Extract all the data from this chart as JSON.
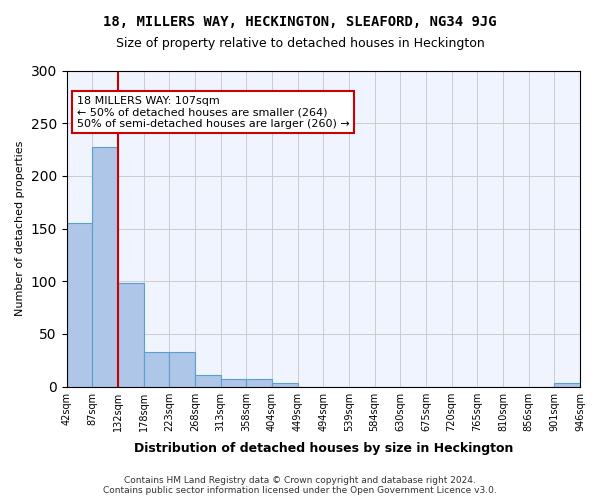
{
  "title": "18, MILLERS WAY, HECKINGTON, SLEAFORD, NG34 9JG",
  "subtitle": "Size of property relative to detached houses in Heckington",
  "xlabel": "Distribution of detached houses by size in Heckington",
  "ylabel": "Number of detached properties",
  "bar_values": [
    155,
    227,
    98,
    33,
    33,
    11,
    7,
    7,
    3,
    0,
    0,
    0,
    0,
    0,
    0,
    0,
    0,
    0,
    0,
    3
  ],
  "bar_labels": [
    "42sqm",
    "87sqm",
    "132sqm",
    "178sqm",
    "223sqm",
    "268sqm",
    "313sqm",
    "358sqm",
    "404sqm",
    "449sqm",
    "494sqm",
    "539sqm",
    "584sqm",
    "630sqm",
    "675sqm",
    "720sqm",
    "765sqm",
    "810sqm",
    "856sqm",
    "901sqm",
    "946sqm"
  ],
  "bar_color": "#aec6e8",
  "bar_edge_color": "#5a9fd4",
  "ylim": [
    0,
    300
  ],
  "yticks": [
    0,
    50,
    100,
    150,
    200,
    250,
    300
  ],
  "vline_x": 2,
  "vline_color": "#cc0000",
  "annotation_text": "18 MILLERS WAY: 107sqm\n← 50% of detached houses are smaller (264)\n50% of semi-detached houses are larger (260) →",
  "annotation_box_color": "#ffffff",
  "annotation_box_edge_color": "#cc0000",
  "footer_text": "Contains HM Land Registry data © Crown copyright and database right 2024.\nContains public sector information licensed under the Open Government Licence v3.0.",
  "background_color": "#f0f4ff",
  "grid_color": "#cccccc"
}
